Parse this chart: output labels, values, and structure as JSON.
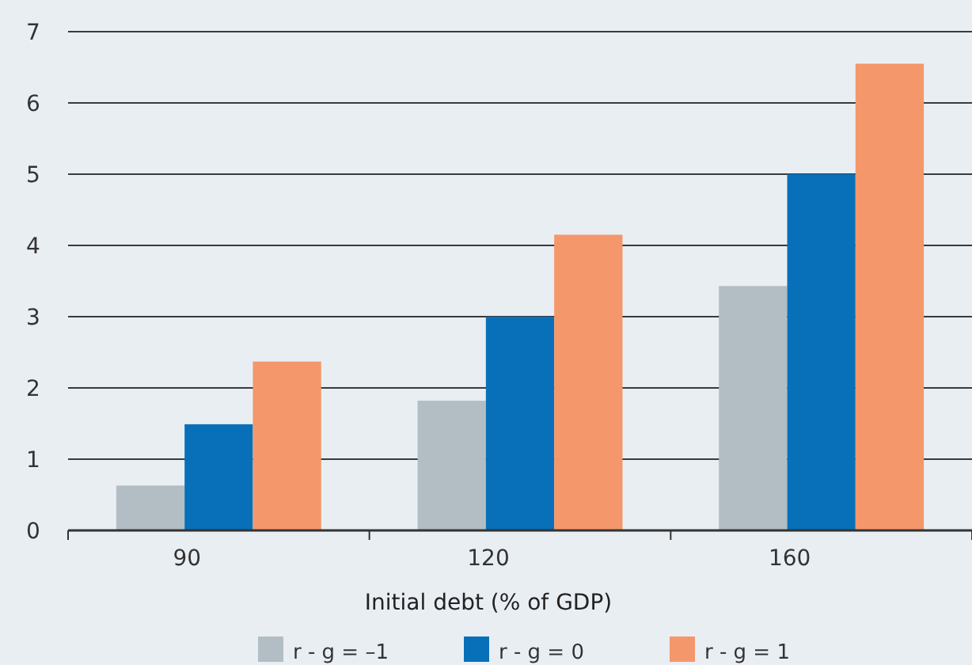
{
  "chart_data": {
    "type": "bar",
    "xlabel": "Initial debt (% of GDP)",
    "categories": [
      "90",
      "120",
      "160"
    ],
    "series": [
      {
        "name": "r - g = –1",
        "color": "#b2bec3",
        "values": [
          0.63,
          1.82,
          3.43
        ]
      },
      {
        "name": "r - g = 0",
        "color": "#0870b9",
        "values": [
          1.49,
          3.0,
          5.0
        ]
      },
      {
        "name": "r - g = 1",
        "color": "#f4976b",
        "values": [
          2.37,
          4.15,
          6.55
        ]
      }
    ],
    "ylim": [
      0,
      7
    ],
    "yticks": [
      0,
      1,
      2,
      3,
      4,
      5,
      6,
      7
    ],
    "grid": "y",
    "legend": "bottom"
  }
}
